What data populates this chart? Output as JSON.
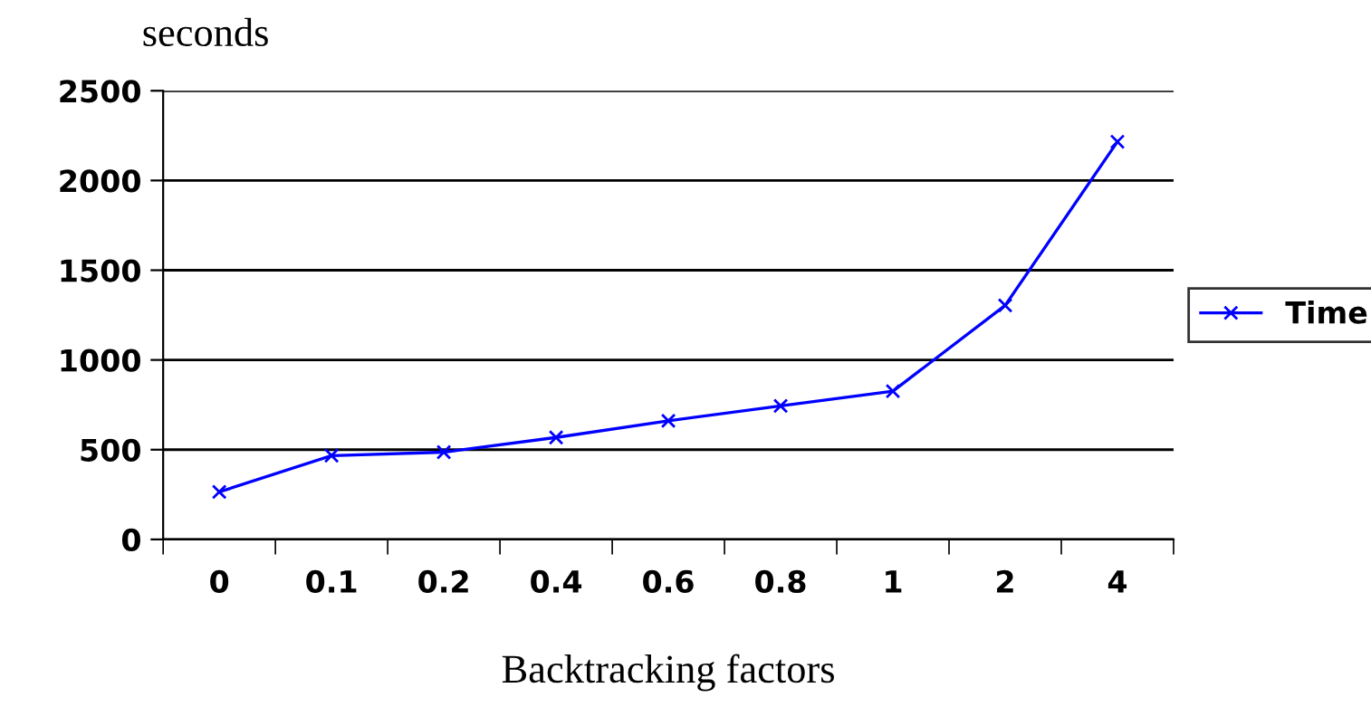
{
  "chart_data": {
    "type": "line",
    "xlabel": "Backtracking factors",
    "ylabel": "seconds",
    "categories": [
      "0",
      "0.1",
      "0.2",
      "0.4",
      "0.6",
      "0.8",
      "1",
      "2",
      "4"
    ],
    "series": [
      {
        "name": "Time",
        "color": "#0000ff",
        "values": [
          265,
          467,
          486,
          568,
          661,
          744,
          826,
          1304,
          2216
        ]
      }
    ],
    "ylim": [
      0,
      2500
    ],
    "yticks": [
      0,
      500,
      1000,
      1500,
      2000,
      2500
    ],
    "grid": "y",
    "legend": "right",
    "marker": "cross",
    "line_style": "solid"
  }
}
